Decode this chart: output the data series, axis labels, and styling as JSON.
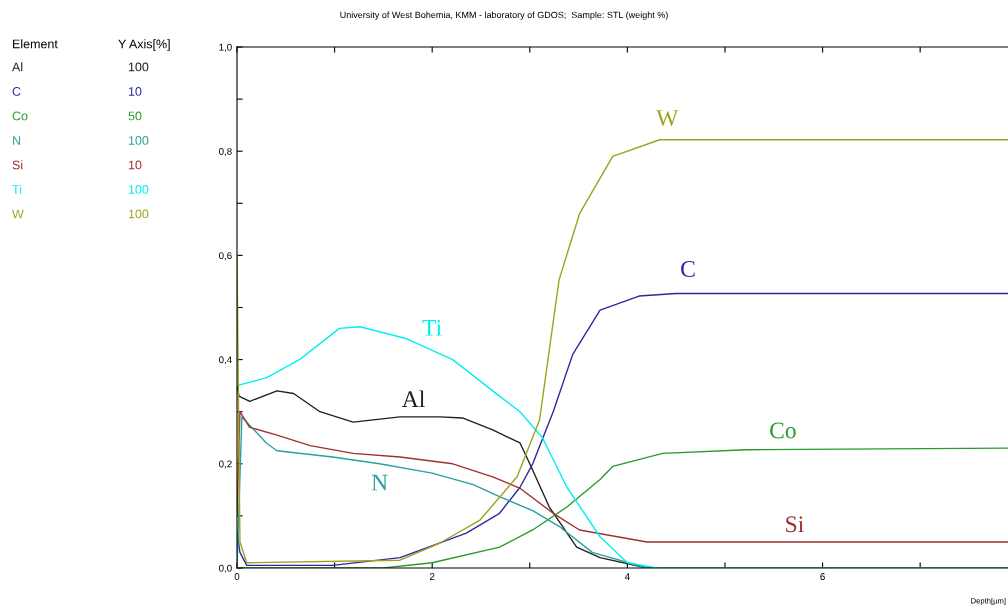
{
  "chart_data": {
    "type": "line",
    "title": "University of West Bohemia, KMM - laboratory of GDOS;  Sample: STL (weight %)",
    "xlabel": "Depth[µm]",
    "xlim": [
      0,
      7.9
    ],
    "ylim": [
      0,
      1.0
    ],
    "xticks": [
      0,
      {
        "value": 1,
        "label": null
      },
      2,
      {
        "value": 3,
        "label": null
      },
      4,
      {
        "value": 5,
        "label": null
      },
      6,
      {
        "value": 7,
        "label": null
      }
    ],
    "yticks": [
      {
        "value": 0,
        "label": "0,0"
      },
      {
        "value": 0.1,
        "label": null
      },
      {
        "value": 0.2,
        "label": "0,2"
      },
      {
        "value": 0.3,
        "label": null
      },
      {
        "value": 0.4,
        "label": "0,4"
      },
      {
        "value": 0.5,
        "label": null
      },
      {
        "value": 0.6,
        "label": "0,6"
      },
      {
        "value": 0.7,
        "label": null
      },
      {
        "value": 0.8,
        "label": "0,8"
      },
      {
        "value": 0.9,
        "label": null
      },
      {
        "value": 1.0,
        "label": "1,0"
      }
    ],
    "grid": false,
    "legend": false,
    "marker": "none",
    "line_style": "solid",
    "series": [
      {
        "name": "Al",
        "color": "#202020",
        "x": [
          0,
          0.02,
          0.13,
          0.41,
          0.58,
          0.85,
          1.19,
          1.67,
          2.08,
          2.31,
          2.62,
          2.9,
          3.0,
          3.2,
          3.48,
          3.72,
          4.2,
          7.9
        ],
        "values": [
          0.35,
          0.33,
          0.32,
          0.34,
          0.335,
          0.3,
          0.28,
          0.29,
          0.29,
          0.288,
          0.265,
          0.24,
          0.2,
          0.117,
          0.04,
          0.02,
          0.0,
          0.0
        ]
      },
      {
        "name": "C",
        "color": "#2a2aa0",
        "x": [
          0,
          0.03,
          0.1,
          0.98,
          1.67,
          2.35,
          2.69,
          2.9,
          3.03,
          3.24,
          3.44,
          3.72,
          4.12,
          4.5,
          7.9
        ],
        "values": [
          0.07,
          0.03,
          0.005,
          0.005,
          0.02,
          0.067,
          0.105,
          0.155,
          0.2,
          0.3,
          0.41,
          0.495,
          0.522,
          0.527,
          0.527
        ]
      },
      {
        "name": "Co",
        "color": "#2a9a2a",
        "x": [
          0,
          1.5,
          2.0,
          2.69,
          3.03,
          3.38,
          3.72,
          3.85,
          4.36,
          5.22,
          7.9
        ],
        "values": [
          0.0,
          0.0,
          0.01,
          0.04,
          0.073,
          0.117,
          0.17,
          0.195,
          0.22,
          0.227,
          0.23
        ]
      },
      {
        "name": "N",
        "color": "#2aa0a0",
        "x": [
          0,
          0.05,
          0.3,
          0.41,
          0.98,
          1.46,
          2.0,
          2.42,
          2.69,
          3.03,
          3.3,
          3.64,
          4.2,
          7.9
        ],
        "values": [
          0.0,
          0.29,
          0.24,
          0.225,
          0.213,
          0.2,
          0.182,
          0.16,
          0.137,
          0.11,
          0.08,
          0.03,
          0.0,
          0.0
        ]
      },
      {
        "name": "Si",
        "color": "#a03030",
        "x": [
          0,
          0.03,
          0.13,
          0.41,
          0.75,
          1.19,
          1.67,
          2.21,
          2.62,
          2.9,
          3.24,
          3.51,
          4.2,
          7.9
        ],
        "values": [
          0.1,
          0.3,
          0.27,
          0.255,
          0.235,
          0.22,
          0.213,
          0.2,
          0.175,
          0.153,
          0.105,
          0.073,
          0.05,
          0.05
        ]
      },
      {
        "name": "Ti",
        "color": "#00f0f0",
        "x": [
          0,
          0.3,
          0.64,
          1.05,
          1.26,
          1.74,
          2.21,
          2.62,
          2.9,
          3.13,
          3.38,
          3.72,
          4.0,
          4.3,
          7.9
        ],
        "values": [
          0.35,
          0.365,
          0.4,
          0.46,
          0.463,
          0.44,
          0.4,
          0.34,
          0.3,
          0.25,
          0.155,
          0.06,
          0.01,
          0.0,
          0.0
        ]
      },
      {
        "name": "W",
        "color": "#a0a020",
        "x": [
          0,
          0.03,
          0.1,
          1.67,
          2.08,
          2.49,
          2.87,
          3.1,
          3.3,
          3.51,
          3.85,
          4.33,
          7.9
        ],
        "values": [
          0.6,
          0.05,
          0.01,
          0.015,
          0.048,
          0.092,
          0.175,
          0.284,
          0.553,
          0.68,
          0.79,
          0.822,
          0.822
        ]
      }
    ],
    "annotations": [
      "Element",
      "Y Axis[%]",
      "100",
      "10",
      "50",
      "100",
      "10",
      "100",
      "100",
      "Al",
      "C",
      "Co",
      "N",
      "Si",
      "Ti",
      "W"
    ]
  }
}
